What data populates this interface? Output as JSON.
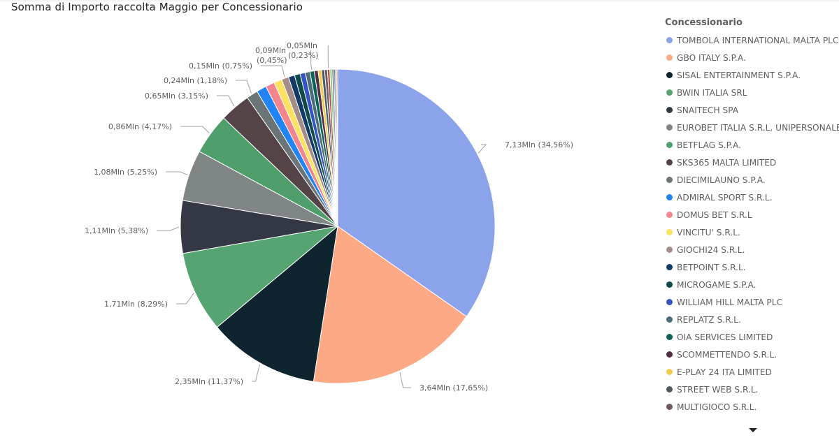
{
  "chart_data": {
    "type": "pie",
    "title": "Somma di Importo raccolta Maggio per Concessionario",
    "legend_title": "Concessionario",
    "legend_position": "right",
    "slices": [
      {
        "name": "TOMBOLA INTERNATIONAL MALTA PLC",
        "value": 7.13,
        "percent": 34.56,
        "label": "7,13Mln (34,56%)",
        "color": "#8aa3ea"
      },
      {
        "name": "GBO ITALY S.P.A.",
        "value": 3.64,
        "percent": 17.65,
        "label": "3,64Mln (17,65%)",
        "color": "#fda986"
      },
      {
        "name": "SISAL ENTERTAINMENT S.P.A.",
        "value": 2.35,
        "percent": 11.37,
        "label": "2,35Mln (11,37%)",
        "color": "#0e242e"
      },
      {
        "name": "BWIN ITALIA SRL",
        "value": 1.71,
        "percent": 8.29,
        "label": "1,71Mln (8,29%)",
        "color": "#57a473"
      },
      {
        "name": "SNAITECH SPA",
        "value": 1.11,
        "percent": 5.38,
        "label": "1,11Mln (5,38%)",
        "color": "#343844"
      },
      {
        "name": "EUROBET ITALIA S.R.L. UNIPERSONALE",
        "value": 1.08,
        "percent": 5.25,
        "label": "1,08Mln (5,25%)",
        "color": "#808685"
      },
      {
        "name": "BETFLAG S.P.A.",
        "value": 0.86,
        "percent": 4.17,
        "label": "0,86Mln (4,17%)",
        "color": "#4f9e6c"
      },
      {
        "name": "SKS365 MALTA LIMITED",
        "value": 0.65,
        "percent": 3.15,
        "label": "0,65Mln (3,15%)",
        "color": "#544448"
      },
      {
        "name": "DIECIMILAUNO S.P.A.",
        "value": 0.24,
        "percent": 1.18,
        "label": "0,24Mln (1,18%)",
        "color": "#6b7476"
      },
      {
        "name": "ADMIRAL SPORT S.R.L.",
        "value": 0.21,
        "percent": 1.0,
        "label": "",
        "color": "#2283f4"
      },
      {
        "name": "DOMUS BET S.R.L",
        "value": 0.19,
        "percent": 0.9,
        "label": "",
        "color": "#f2858e"
      },
      {
        "name": "VINCITU' S.R.L.",
        "value": 0.17,
        "percent": 0.82,
        "label": "",
        "color": "#fce260"
      },
      {
        "name": "GIOCHI24 S.R.L.",
        "value": 0.15,
        "percent": 0.75,
        "label": "0,15Mln (0,75%)",
        "color": "#a58d8a"
      },
      {
        "name": "BETPOINT S.R.L.",
        "value": 0.13,
        "percent": 0.62,
        "label": "",
        "color": "#143b67"
      },
      {
        "name": "MICROGAME S.P.A.",
        "value": 0.12,
        "percent": 0.58,
        "label": "",
        "color": "#0e4a4e"
      },
      {
        "name": "WILLIAM HILL MALTA PLC",
        "value": 0.11,
        "percent": 0.52,
        "label": "",
        "color": "#3454c4"
      },
      {
        "name": "REPLATZ S.R.L.",
        "value": 0.1,
        "percent": 0.48,
        "label": "",
        "color": "#4c6d79"
      },
      {
        "name": "OIA SERVICES LIMITED",
        "value": 0.09,
        "percent": 0.45,
        "label": "0,09Mln (0,45%)",
        "color": "#0f6257"
      },
      {
        "name": "SCOMMETTENDO S.R.L.",
        "value": 0.08,
        "percent": 0.4,
        "label": "",
        "color": "#532d44"
      },
      {
        "name": "E-PLAY 24 ITA LIMITED",
        "value": 0.07,
        "percent": 0.35,
        "label": "",
        "color": "#f2cd4c"
      },
      {
        "name": "STREET WEB S.R.L.",
        "value": 0.065,
        "percent": 0.31,
        "label": "",
        "color": "#505865"
      },
      {
        "name": "MULTIGIOCO S.R.L.",
        "value": 0.06,
        "percent": 0.28,
        "label": "",
        "color": "#6e5a5e"
      },
      {
        "name": "",
        "value": 0.05,
        "percent": 0.23,
        "label": "0,05Mln (0,23%)",
        "color": "#b8464c"
      },
      {
        "name": "",
        "value": 0.045,
        "percent": 0.21,
        "label": "",
        "color": "#75d96b"
      },
      {
        "name": "",
        "value": 0.04,
        "percent": 0.18,
        "label": "",
        "color": "#8c5e9e"
      },
      {
        "name": "",
        "value": 0.03,
        "percent": 0.15,
        "label": "",
        "color": "#2e8fa0"
      },
      {
        "name": "",
        "value": 0.03,
        "percent": 0.12,
        "label": "",
        "color": "#c9613f"
      },
      {
        "name": "",
        "value": 0.02,
        "percent": 0.1,
        "label": "",
        "color": "#1d5f8a"
      }
    ]
  }
}
